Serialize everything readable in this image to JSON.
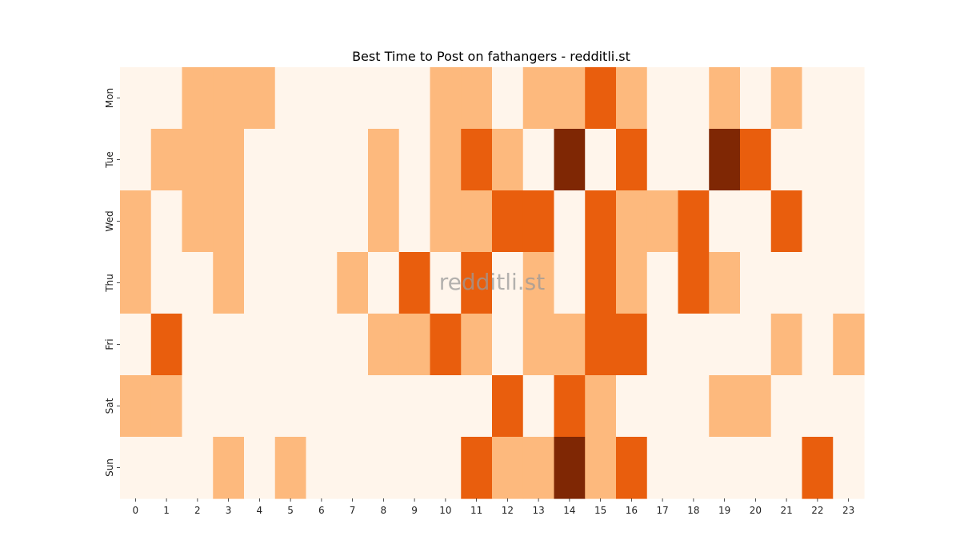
{
  "chart_data": {
    "type": "heatmap",
    "title": "Best Time to Post on fathangers - redditli.st",
    "watermark": "redditli.st",
    "x_labels": [
      "0",
      "1",
      "2",
      "3",
      "4",
      "5",
      "6",
      "7",
      "8",
      "9",
      "10",
      "11",
      "12",
      "13",
      "14",
      "15",
      "16",
      "17",
      "18",
      "19",
      "20",
      "21",
      "22",
      "23"
    ],
    "y_labels": [
      "Mon",
      "Tue",
      "Wed",
      "Thu",
      "Fri",
      "Sat",
      "Sun"
    ],
    "colormap": "Oranges",
    "levels": [
      "#fff5eb",
      "#fdb97d",
      "#e95e0d",
      "#7f2704"
    ],
    "values": [
      [
        0,
        0,
        1,
        1,
        1,
        0,
        0,
        0,
        0,
        0,
        1,
        1,
        0,
        1,
        1,
        2,
        1,
        0,
        0,
        1,
        0,
        1,
        0,
        0
      ],
      [
        0,
        1,
        1,
        1,
        0,
        0,
        0,
        0,
        1,
        0,
        1,
        2,
        1,
        0,
        3,
        0,
        2,
        0,
        0,
        3,
        2,
        0,
        0,
        0
      ],
      [
        1,
        0,
        1,
        1,
        0,
        0,
        0,
        0,
        1,
        0,
        1,
        1,
        2,
        2,
        0,
        2,
        1,
        1,
        2,
        0,
        0,
        2,
        0,
        0
      ],
      [
        1,
        0,
        0,
        1,
        0,
        0,
        0,
        1,
        0,
        2,
        0,
        2,
        0,
        1,
        0,
        2,
        1,
        0,
        2,
        1,
        0,
        0,
        0,
        0
      ],
      [
        0,
        2,
        0,
        0,
        0,
        0,
        0,
        0,
        1,
        1,
        2,
        1,
        0,
        1,
        1,
        2,
        2,
        0,
        0,
        0,
        0,
        1,
        0,
        1
      ],
      [
        1,
        1,
        0,
        0,
        0,
        0,
        0,
        0,
        0,
        0,
        0,
        0,
        2,
        0,
        2,
        1,
        0,
        0,
        0,
        1,
        1,
        0,
        0,
        0
      ],
      [
        0,
        0,
        0,
        1,
        0,
        1,
        0,
        0,
        0,
        0,
        0,
        2,
        1,
        1,
        3,
        1,
        2,
        0,
        0,
        0,
        0,
        0,
        2,
        0
      ]
    ]
  }
}
